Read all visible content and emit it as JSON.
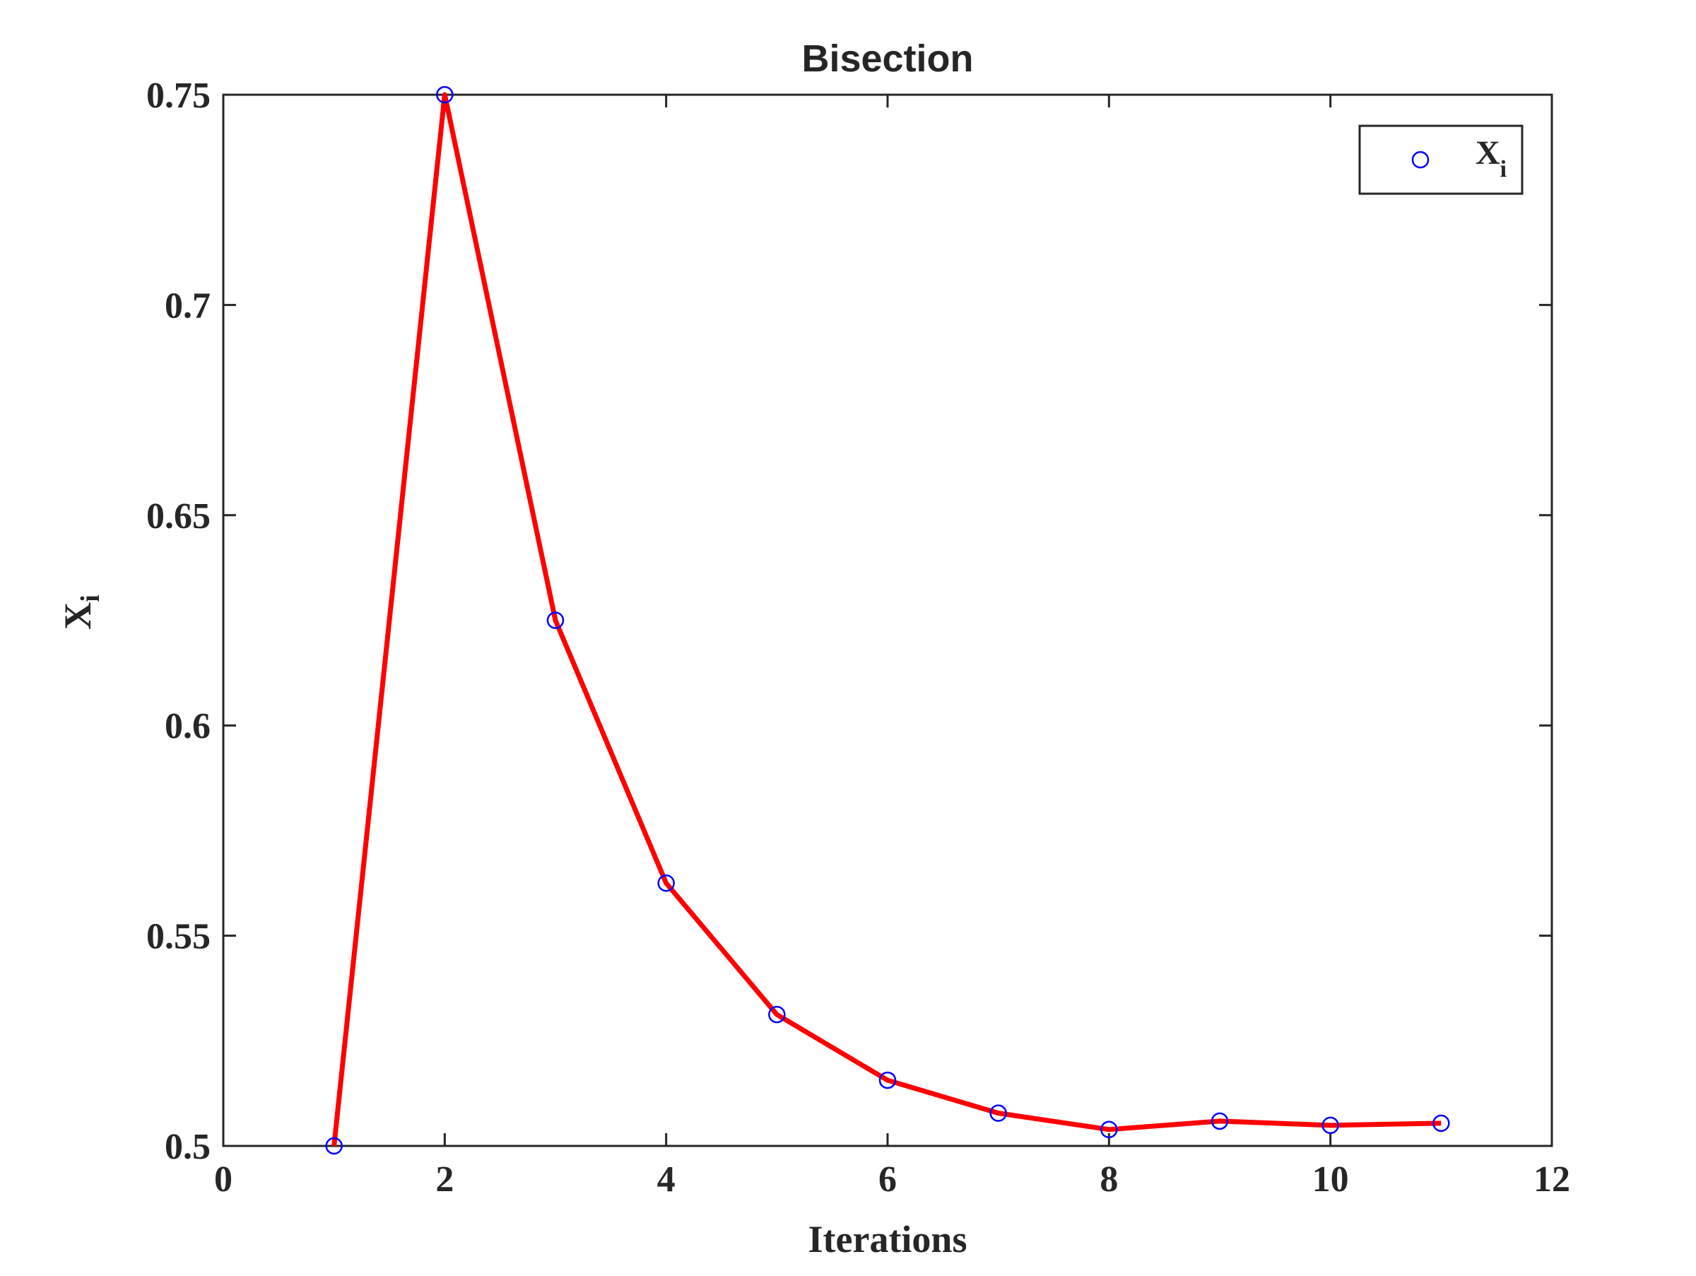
{
  "chart_data": {
    "type": "line",
    "title": "Bisection",
    "xlabel": "Iterations",
    "ylabel": {
      "main": "X",
      "sub": "i"
    },
    "xlim": [
      0,
      12
    ],
    "ylim": [
      0.5,
      0.75
    ],
    "x_ticks": [
      0,
      2,
      4,
      6,
      8,
      10,
      12
    ],
    "x_tick_labels": [
      "0",
      "2",
      "4",
      "6",
      "8",
      "10",
      "12"
    ],
    "y_ticks": [
      0.5,
      0.55,
      0.6,
      0.65,
      0.7,
      0.75
    ],
    "y_tick_labels": [
      "0.5",
      "0.55",
      "0.6",
      "0.65",
      "0.7",
      "0.75"
    ],
    "grid": false,
    "legend": {
      "placement": "top-right",
      "label_main": "X",
      "label_sub": "i"
    },
    "series": [
      {
        "name": "X_i",
        "line_color": "#ff0000",
        "marker_color": "#0000ff",
        "marker": "circle",
        "x": [
          1,
          2,
          3,
          4,
          5,
          6,
          7,
          8,
          9,
          10,
          11
        ],
        "y": [
          0.5,
          0.75,
          0.625,
          0.5625,
          0.53125,
          0.515625,
          0.5078,
          0.5039,
          0.5059,
          0.5049,
          0.5054
        ]
      }
    ]
  }
}
